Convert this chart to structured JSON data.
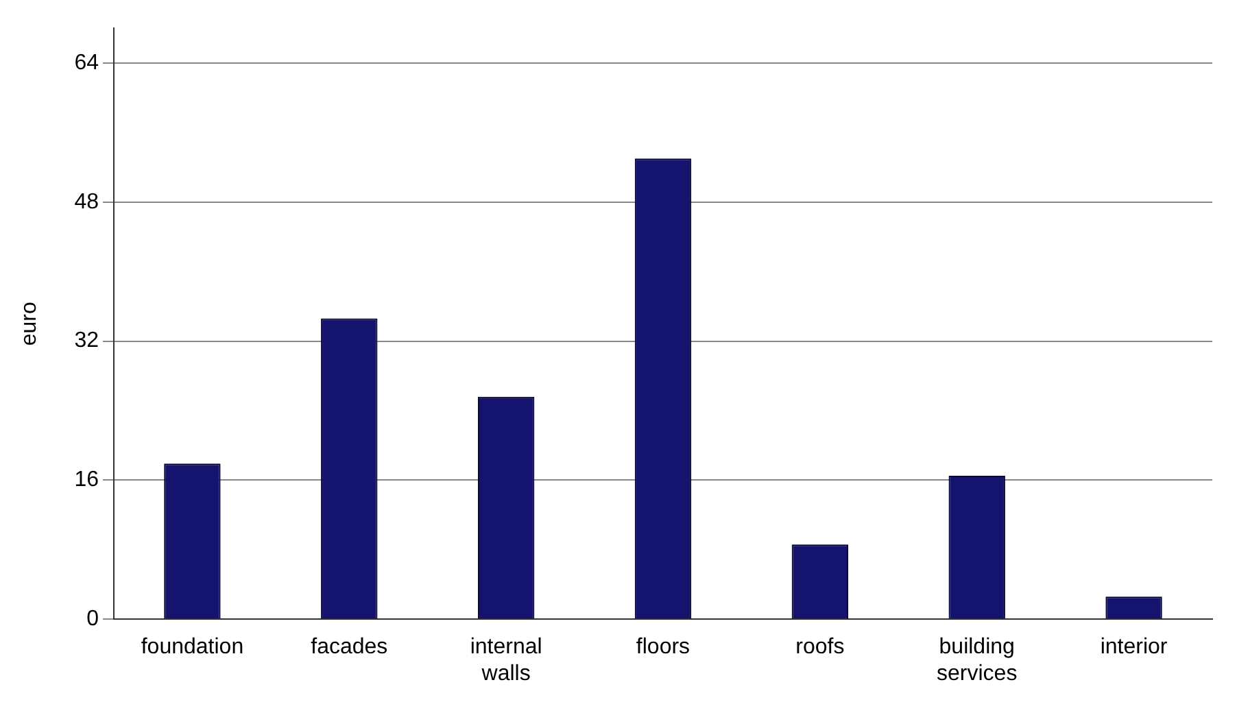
{
  "chart_data": {
    "type": "bar",
    "ylabel": "euro",
    "categories": [
      "foundation",
      "facades",
      "internal walls",
      "floors",
      "roofs",
      "building services",
      "interior"
    ],
    "values": [
      17.9,
      34.6,
      25.6,
      53,
      8.6,
      16.5,
      2.6
    ],
    "color": "#14146e",
    "ylim": [
      0,
      68
    ],
    "yticks": [
      0,
      16,
      32,
      48,
      64
    ],
    "grid": "y",
    "legend": false
  }
}
